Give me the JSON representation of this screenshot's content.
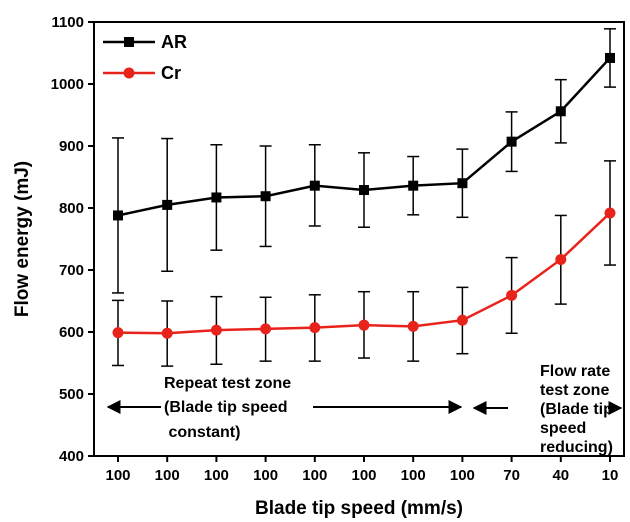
{
  "chart_data": {
    "type": "line",
    "xlabel": "Blade tip speed (mm/s)",
    "ylabel": "Flow energy (mJ)",
    "ylim": [
      400,
      1100
    ],
    "yticks": [
      400,
      500,
      600,
      700,
      800,
      900,
      1000,
      1100
    ],
    "categories": [
      "100",
      "100",
      "100",
      "100",
      "100",
      "100",
      "100",
      "100",
      "70",
      "40",
      "10"
    ],
    "legend_position": "top-left",
    "grid": false,
    "series": [
      {
        "name": "AR",
        "color": "#000000",
        "marker": "square",
        "values": [
          788,
          805,
          817,
          819,
          836,
          829,
          836,
          840,
          907,
          956,
          1042
        ],
        "error_low": [
          663,
          698,
          732,
          738,
          771,
          769,
          789,
          785,
          859,
          905,
          995
        ],
        "error_high": [
          913,
          912,
          902,
          900,
          902,
          889,
          883,
          895,
          955,
          1007,
          1089
        ]
      },
      {
        "name": "Cr",
        "color": "#e8231b",
        "marker": "circle",
        "values": [
          599,
          598,
          603,
          605,
          607,
          611,
          609,
          619,
          659,
          717,
          792
        ],
        "error_low": [
          546,
          545,
          548,
          553,
          553,
          558,
          553,
          565,
          598,
          645,
          708
        ],
        "error_high": [
          651,
          650,
          657,
          656,
          660,
          665,
          665,
          672,
          720,
          788,
          876
        ]
      }
    ],
    "annotations": [
      {
        "name": "repeat-zone",
        "lines": [
          "Repeat test zone",
          "(Blade tip speed",
          " constant)"
        ]
      },
      {
        "name": "flowrate-zone",
        "lines": [
          "Flow rate",
          "test zone",
          "(Blade tip",
          "speed",
          "reducing)"
        ]
      }
    ]
  }
}
